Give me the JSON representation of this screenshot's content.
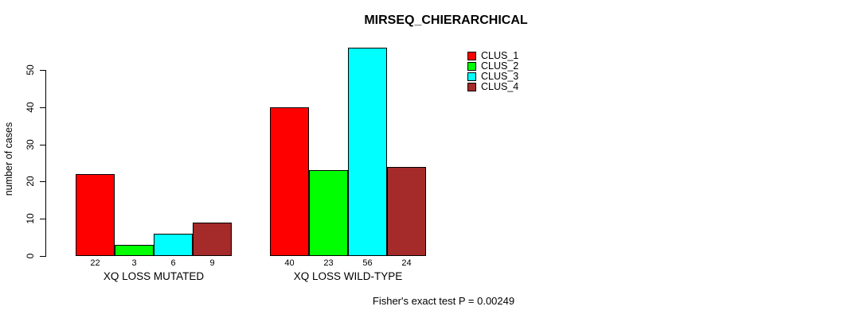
{
  "chart_data": {
    "type": "bar",
    "title": "MIRSEQ_CHIERARCHICAL",
    "ylabel": "number of cases",
    "xlabel": "",
    "annotation": "Fisher's exact test P = 0.00249",
    "categories": [
      "XQ LOSS MUTATED",
      "XQ LOSS WILD-TYPE"
    ],
    "series": [
      {
        "name": "CLUS_1",
        "color": "#FF0000",
        "values": [
          22,
          40
        ]
      },
      {
        "name": "CLUS_2",
        "color": "#00FF00",
        "values": [
          3,
          23
        ]
      },
      {
        "name": "CLUS_3",
        "color": "#00FFFF",
        "values": [
          6,
          56
        ]
      },
      {
        "name": "CLUS_4",
        "color": "#A52A2A",
        "values": [
          9,
          24
        ]
      }
    ],
    "bar_value_labels": [
      [
        "22",
        "3",
        "6",
        "9"
      ],
      [
        "40",
        "23",
        "56",
        "24"
      ]
    ],
    "yticks": [
      "0",
      "10",
      "20",
      "30",
      "40",
      "50"
    ],
    "ylim": [
      0,
      56
    ],
    "grid": false,
    "legend_position": "top-right",
    "background_color": "#FFFFFF",
    "axis_color": "#000000",
    "text_color": "#000000"
  }
}
